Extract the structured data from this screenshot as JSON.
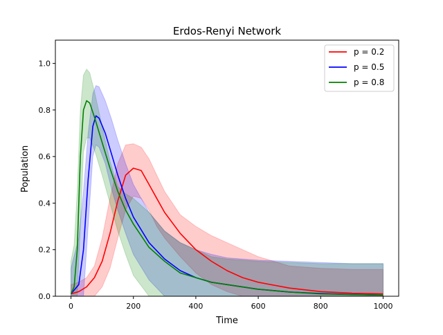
{
  "chart_data": {
    "type": "line",
    "title": "Erdos-Renyi Network",
    "xlabel": "Time",
    "ylabel": "Population",
    "xlim": [
      -50,
      1050
    ],
    "ylim": [
      0,
      1.1
    ],
    "xticks": [
      0,
      200,
      400,
      600,
      800,
      1000
    ],
    "yticks": [
      0.0,
      0.2,
      0.4,
      0.6,
      0.8,
      1.0
    ],
    "xtick_labels": [
      "0",
      "200",
      "400",
      "600",
      "800",
      "1000"
    ],
    "ytick_labels": [
      "0.0",
      "0.2",
      "0.4",
      "0.6",
      "0.8",
      "1.0"
    ],
    "grid": false,
    "legend_position": "top-right",
    "series": [
      {
        "name": "p = 0.2",
        "color": "#ff0000",
        "x": [
          0,
          25,
          50,
          75,
          100,
          125,
          150,
          175,
          200,
          225,
          250,
          275,
          300,
          350,
          400,
          450,
          500,
          550,
          600,
          700,
          800,
          900,
          1000
        ],
        "mean": [
          0.01,
          0.02,
          0.04,
          0.08,
          0.15,
          0.27,
          0.41,
          0.52,
          0.55,
          0.54,
          0.48,
          0.42,
          0.36,
          0.27,
          0.2,
          0.15,
          0.11,
          0.08,
          0.06,
          0.035,
          0.02,
          0.013,
          0.01
        ],
        "upper": [
          0.05,
          0.06,
          0.08,
          0.13,
          0.25,
          0.42,
          0.57,
          0.65,
          0.655,
          0.64,
          0.59,
          0.52,
          0.45,
          0.35,
          0.3,
          0.26,
          0.23,
          0.2,
          0.17,
          0.13,
          0.12,
          0.115,
          0.115
        ],
        "lower": [
          0.0,
          0.0,
          0.0,
          0.0,
          0.04,
          0.12,
          0.25,
          0.37,
          0.43,
          0.42,
          0.37,
          0.3,
          0.25,
          0.17,
          0.1,
          0.05,
          0.02,
          0.0,
          0.0,
          0.0,
          0.0,
          0.0,
          0.0
        ]
      },
      {
        "name": "p = 0.5",
        "color": "#0000ff",
        "x": [
          0,
          25,
          40,
          55,
          70,
          80,
          90,
          110,
          130,
          150,
          175,
          200,
          250,
          300,
          350,
          400,
          450,
          500,
          600,
          700,
          800,
          900,
          1000
        ],
        "mean": [
          0.01,
          0.05,
          0.2,
          0.5,
          0.73,
          0.775,
          0.765,
          0.7,
          0.61,
          0.52,
          0.42,
          0.34,
          0.23,
          0.16,
          0.11,
          0.08,
          0.06,
          0.05,
          0.03,
          0.018,
          0.012,
          0.008,
          0.005
        ],
        "upper": [
          0.12,
          0.25,
          0.45,
          0.7,
          0.87,
          0.905,
          0.9,
          0.84,
          0.76,
          0.67,
          0.57,
          0.48,
          0.36,
          0.28,
          0.23,
          0.2,
          0.18,
          0.165,
          0.155,
          0.15,
          0.145,
          0.14,
          0.14
        ],
        "lower": [
          0.0,
          0.0,
          0.0,
          0.3,
          0.6,
          0.65,
          0.64,
          0.57,
          0.46,
          0.37,
          0.27,
          0.18,
          0.07,
          0.0,
          0.0,
          0.0,
          0.0,
          0.0,
          0.0,
          0.0,
          0.0,
          0.0,
          0.0
        ]
      },
      {
        "name": "p = 0.8",
        "color": "#008000",
        "x": [
          0,
          10,
          20,
          30,
          40,
          50,
          60,
          75,
          100,
          125,
          150,
          175,
          200,
          250,
          300,
          350,
          400,
          450,
          500,
          600,
          700,
          800,
          900,
          1000
        ],
        "mean": [
          0.01,
          0.04,
          0.2,
          0.6,
          0.8,
          0.84,
          0.83,
          0.77,
          0.66,
          0.55,
          0.45,
          0.37,
          0.31,
          0.21,
          0.15,
          0.1,
          0.08,
          0.06,
          0.05,
          0.03,
          0.018,
          0.01,
          0.007,
          0.005
        ],
        "upper": [
          0.15,
          0.22,
          0.45,
          0.8,
          0.95,
          0.975,
          0.96,
          0.88,
          0.73,
          0.58,
          0.47,
          0.44,
          0.42,
          0.36,
          0.28,
          0.23,
          0.2,
          0.17,
          0.16,
          0.15,
          0.145,
          0.14,
          0.14,
          0.14
        ],
        "lower": [
          0.0,
          0.0,
          0.0,
          0.3,
          0.62,
          0.68,
          0.68,
          0.63,
          0.52,
          0.4,
          0.28,
          0.18,
          0.09,
          0.0,
          0.0,
          0.0,
          0.0,
          0.0,
          0.0,
          0.0,
          0.0,
          0.0,
          0.0,
          0.0
        ]
      }
    ]
  }
}
